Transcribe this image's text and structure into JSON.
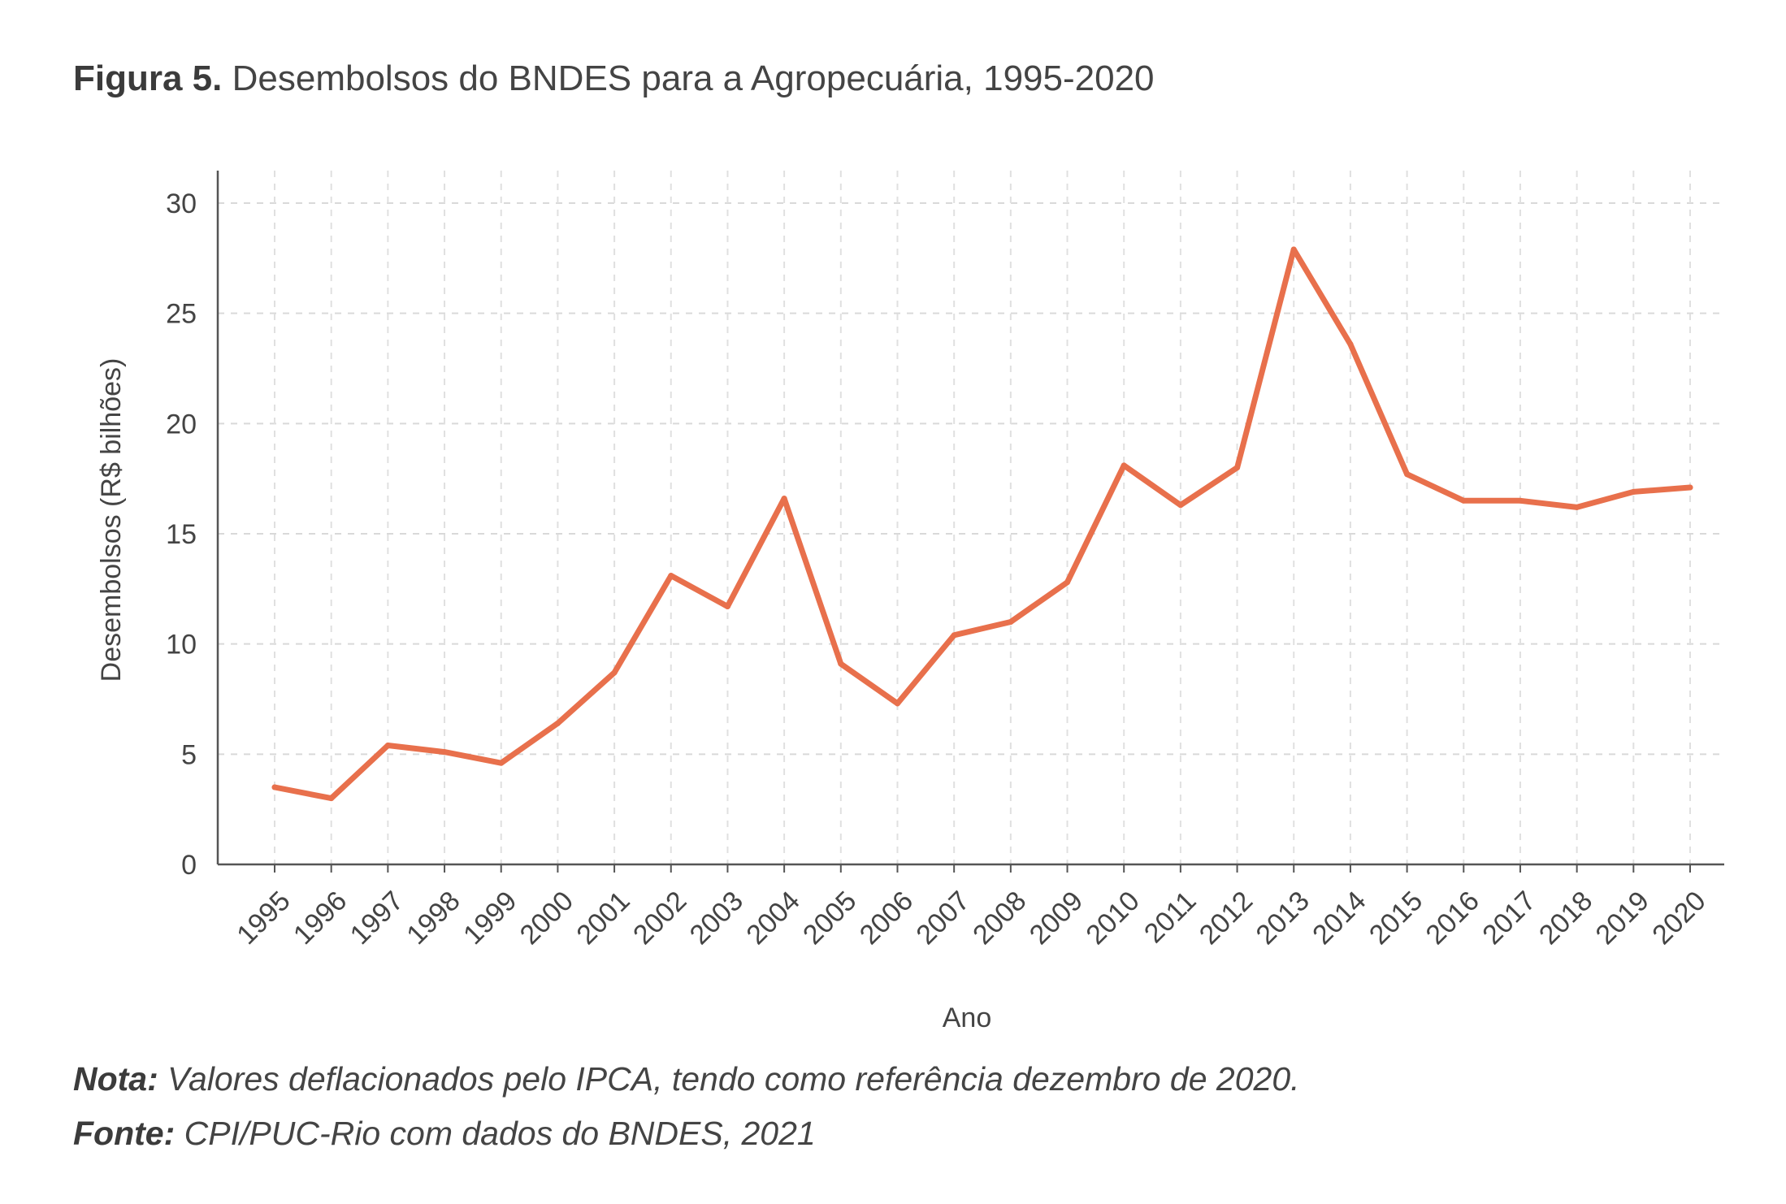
{
  "title": {
    "label": "Figura 5.",
    "text": "Desembolsos do BNDES para a Agropecuária, 1995-2020"
  },
  "notes": {
    "nota_label": "Nota:",
    "nota_text": "Valores deflacionados pelo IPCA, tendo como referência dezembro de 2020.",
    "fonte_label": "Fonte:",
    "fonte_text": "CPI/PUC-Rio com dados do BNDES, 2021"
  },
  "chart_data": {
    "type": "line",
    "xlabel": "Ano",
    "ylabel": "Desembolsos (R$ bilhões)",
    "ylim": [
      0,
      30
    ],
    "yticks": [
      0,
      5,
      10,
      15,
      20,
      25,
      30
    ],
    "grid": true,
    "x": [
      "1995",
      "1996",
      "1997",
      "1998",
      "1999",
      "2000",
      "2001",
      "2002",
      "2003",
      "2004",
      "2005",
      "2006",
      "2007",
      "2008",
      "2009",
      "2010",
      "2011",
      "2012",
      "2013",
      "2014",
      "2015",
      "2016",
      "2017",
      "2018",
      "2019",
      "2020"
    ],
    "series": [
      {
        "values": [
          3.5,
          3.0,
          5.4,
          5.1,
          4.6,
          6.4,
          8.7,
          13.1,
          11.7,
          16.6,
          9.1,
          7.3,
          10.4,
          11.0,
          12.8,
          18.1,
          16.3,
          18.0,
          27.9,
          23.6,
          17.7,
          16.5,
          16.5,
          16.2,
          16.9,
          17.1
        ]
      }
    ],
    "line_color": "#e8704c"
  }
}
